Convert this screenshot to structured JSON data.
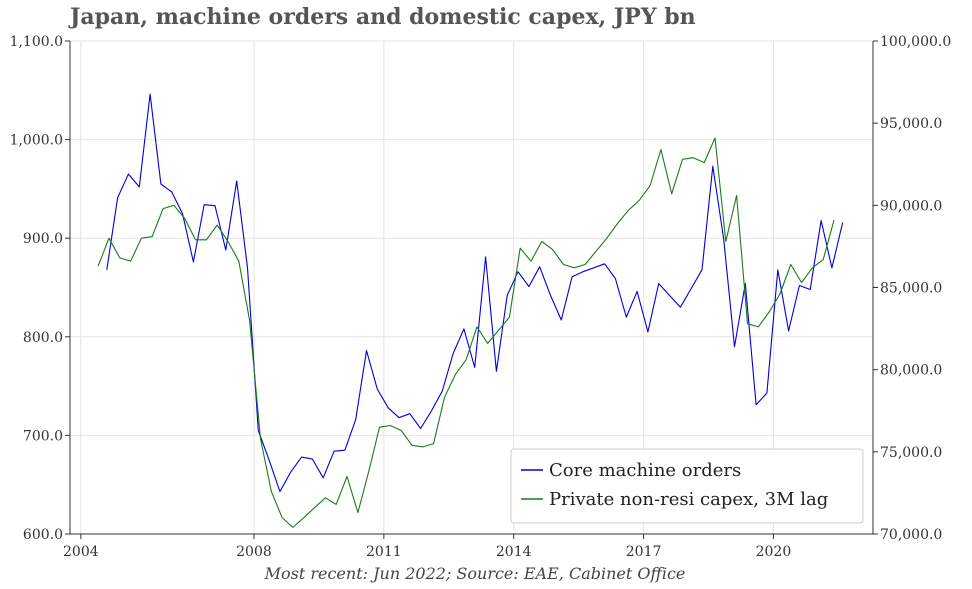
{
  "title": "Japan, machine orders and domestic capex, JPY bn",
  "footnote": "Most recent: Jun 2022; Source: EAE, Cabinet Office",
  "colors": {
    "series1": "#0000dd",
    "series2": "#1a7a1a",
    "grid": "#e4e4e4",
    "axis": "#333333"
  },
  "chart_data": {
    "type": "line",
    "x_axis": {
      "range": [
        2003.75,
        2022.3
      ],
      "ticks": [
        2004,
        2008,
        2011,
        2014,
        2017,
        2020
      ],
      "tick_labels": [
        "2004",
        "2008",
        "2011",
        "2014",
        "2017",
        "2020"
      ]
    },
    "y_left": {
      "range": [
        600,
        1100
      ],
      "ticks": [
        600,
        700,
        800,
        900,
        1000,
        1100
      ],
      "tick_labels": [
        "600.0",
        "700.0",
        "800.0",
        "900.0",
        "1,000.0",
        "1,100.0"
      ]
    },
    "y_right": {
      "range": [
        70000,
        100000
      ],
      "ticks": [
        70000,
        75000,
        80000,
        85000,
        90000,
        95000,
        100000
      ],
      "tick_labels": [
        "70,000.0",
        "75,000.0",
        "80,000.0",
        "85,000.0",
        "90,000.0",
        "95,000.0",
        "100,000.0"
      ]
    },
    "grid": true,
    "legend_position": "bottom-right",
    "series": [
      {
        "name": "Core machine orders",
        "axis": "left",
        "color": "#0000dd",
        "points": [
          [
            2004.6,
            868
          ],
          [
            2004.85,
            941
          ],
          [
            2005.1,
            965
          ],
          [
            2005.35,
            952
          ],
          [
            2005.6,
            1046
          ],
          [
            2005.85,
            955
          ],
          [
            2006.1,
            947
          ],
          [
            2006.35,
            925
          ],
          [
            2006.6,
            876
          ],
          [
            2006.85,
            934
          ],
          [
            2007.1,
            933
          ],
          [
            2007.35,
            888
          ],
          [
            2007.6,
            958
          ],
          [
            2007.85,
            870
          ],
          [
            2008.1,
            705
          ],
          [
            2008.35,
            675
          ],
          [
            2008.6,
            643
          ],
          [
            2008.85,
            663
          ],
          [
            2009.1,
            678
          ],
          [
            2009.35,
            676
          ],
          [
            2009.6,
            657
          ],
          [
            2009.85,
            684
          ],
          [
            2010.1,
            685
          ],
          [
            2010.35,
            716
          ],
          [
            2010.6,
            786
          ],
          [
            2010.85,
            747
          ],
          [
            2011.1,
            728
          ],
          [
            2011.35,
            718
          ],
          [
            2011.6,
            722
          ],
          [
            2011.85,
            707
          ],
          [
            2012.1,
            725
          ],
          [
            2012.35,
            745
          ],
          [
            2012.6,
            783
          ],
          [
            2012.85,
            808
          ],
          [
            2013.1,
            769
          ],
          [
            2013.35,
            881
          ],
          [
            2013.6,
            765
          ],
          [
            2013.85,
            842
          ],
          [
            2014.1,
            866
          ],
          [
            2014.35,
            851
          ],
          [
            2014.6,
            871
          ],
          [
            2014.85,
            842
          ],
          [
            2015.1,
            817
          ],
          [
            2015.35,
            861
          ],
          [
            2015.6,
            866
          ],
          [
            2015.85,
            870
          ],
          [
            2016.1,
            874
          ],
          [
            2016.35,
            859
          ],
          [
            2016.6,
            820
          ],
          [
            2016.85,
            846
          ],
          [
            2017.1,
            805
          ],
          [
            2017.35,
            854
          ],
          [
            2017.6,
            842
          ],
          [
            2017.85,
            830
          ],
          [
            2018.1,
            849
          ],
          [
            2018.35,
            868
          ],
          [
            2018.6,
            973
          ],
          [
            2018.85,
            899
          ],
          [
            2019.1,
            790
          ],
          [
            2019.35,
            854
          ],
          [
            2019.6,
            731
          ],
          [
            2019.85,
            743
          ],
          [
            2020.1,
            868
          ],
          [
            2020.35,
            806
          ],
          [
            2020.6,
            852
          ],
          [
            2020.85,
            848
          ],
          [
            2021.1,
            918
          ],
          [
            2021.35,
            870
          ],
          [
            2021.6,
            916
          ]
        ]
      },
      {
        "name": "Private non-resi capex, 3M lag",
        "axis": "right",
        "color": "#1a7a1a",
        "points": [
          [
            2004.4,
            86300
          ],
          [
            2004.65,
            88000
          ],
          [
            2004.9,
            86800
          ],
          [
            2005.15,
            86600
          ],
          [
            2005.4,
            88000
          ],
          [
            2005.65,
            88100
          ],
          [
            2005.9,
            89800
          ],
          [
            2006.15,
            90000
          ],
          [
            2006.4,
            89200
          ],
          [
            2006.65,
            87900
          ],
          [
            2006.9,
            87900
          ],
          [
            2007.15,
            88800
          ],
          [
            2007.4,
            87800
          ],
          [
            2007.65,
            86600
          ],
          [
            2007.9,
            83000
          ],
          [
            2008.15,
            75800
          ],
          [
            2008.4,
            72600
          ],
          [
            2008.65,
            71000
          ],
          [
            2008.9,
            70400
          ],
          [
            2009.15,
            71000
          ],
          [
            2009.4,
            71600
          ],
          [
            2009.65,
            72200
          ],
          [
            2009.9,
            71800
          ],
          [
            2010.15,
            73500
          ],
          [
            2010.4,
            71300
          ],
          [
            2010.65,
            73800
          ],
          [
            2010.9,
            76500
          ],
          [
            2011.15,
            76600
          ],
          [
            2011.4,
            76300
          ],
          [
            2011.65,
            75400
          ],
          [
            2011.9,
            75300
          ],
          [
            2012.15,
            75500
          ],
          [
            2012.4,
            78300
          ],
          [
            2012.65,
            79700
          ],
          [
            2012.9,
            80600
          ],
          [
            2013.15,
            82600
          ],
          [
            2013.4,
            81600
          ],
          [
            2013.65,
            82400
          ],
          [
            2013.9,
            83200
          ],
          [
            2014.15,
            87400
          ],
          [
            2014.4,
            86600
          ],
          [
            2014.65,
            87800
          ],
          [
            2014.9,
            87300
          ],
          [
            2015.15,
            86400
          ],
          [
            2015.4,
            86200
          ],
          [
            2015.65,
            86400
          ],
          [
            2015.9,
            87200
          ],
          [
            2016.15,
            88000
          ],
          [
            2016.4,
            88900
          ],
          [
            2016.65,
            89700
          ],
          [
            2016.9,
            90300
          ],
          [
            2017.15,
            91200
          ],
          [
            2017.4,
            93400
          ],
          [
            2017.65,
            90700
          ],
          [
            2017.9,
            92800
          ],
          [
            2018.15,
            92900
          ],
          [
            2018.4,
            92600
          ],
          [
            2018.65,
            94100
          ],
          [
            2018.9,
            87800
          ],
          [
            2019.15,
            90600
          ],
          [
            2019.4,
            82800
          ],
          [
            2019.65,
            82600
          ],
          [
            2019.9,
            83500
          ],
          [
            2020.15,
            84600
          ],
          [
            2020.4,
            86400
          ],
          [
            2020.65,
            85300
          ],
          [
            2020.9,
            86200
          ],
          [
            2021.15,
            86700
          ],
          [
            2021.4,
            89100
          ]
        ]
      }
    ]
  }
}
